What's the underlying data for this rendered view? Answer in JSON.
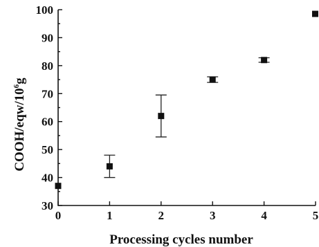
{
  "chart_data": {
    "type": "scatter",
    "title": "",
    "xlabel": "Processing cycles number",
    "ylabel": "COOH/eqw/10",
    "ylabel_superscript": "6",
    "ylabel_suffix": "g",
    "xlim": [
      0,
      5
    ],
    "ylim": [
      30,
      100
    ],
    "x_ticks": [
      0,
      1,
      2,
      3,
      4,
      5
    ],
    "y_ticks": [
      30,
      40,
      50,
      60,
      70,
      80,
      90,
      100
    ],
    "grid": false,
    "legend": "none",
    "marker": "square",
    "color": "#111111",
    "points": [
      {
        "x": 0,
        "y": 37,
        "err_low": 0,
        "err_high": 0
      },
      {
        "x": 1,
        "y": 44,
        "err_low": 4,
        "err_high": 4
      },
      {
        "x": 2,
        "y": 62,
        "err_low": 7.5,
        "err_high": 7.5
      },
      {
        "x": 3,
        "y": 75,
        "err_low": 1,
        "err_high": 1
      },
      {
        "x": 4,
        "y": 82,
        "err_low": 0.8,
        "err_high": 0.8
      },
      {
        "x": 5,
        "y": 98.5,
        "err_low": 0,
        "err_high": 0
      }
    ]
  }
}
